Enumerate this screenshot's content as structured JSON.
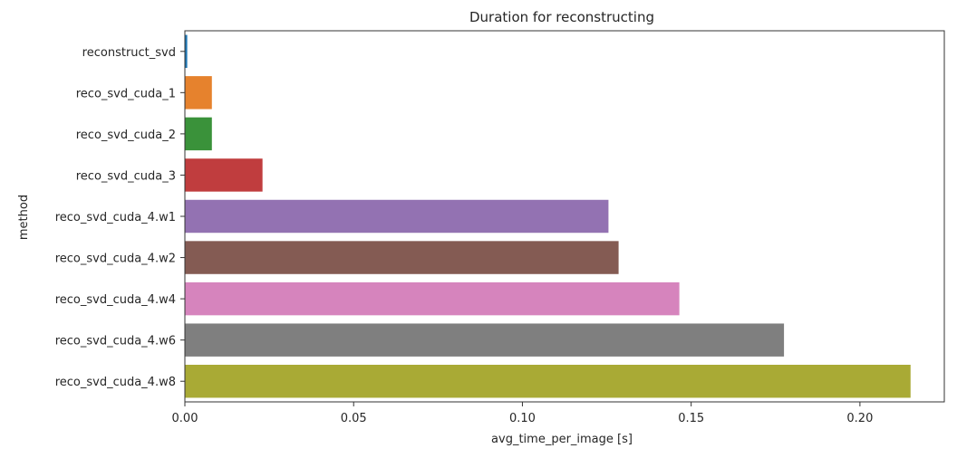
{
  "chart_data": {
    "type": "bar",
    "orientation": "horizontal",
    "title": "Duration for reconstructing",
    "xlabel": "avg_time_per_image [s]",
    "ylabel": "method",
    "xlim": [
      0,
      0.225
    ],
    "xticks": [
      "0.00",
      "0.05",
      "0.10",
      "0.15",
      "0.20"
    ],
    "xtick_values": [
      0,
      0.05,
      0.1,
      0.15,
      0.2
    ],
    "grid": false,
    "categories": [
      "reconstruct_svd",
      "reco_svd_cuda_1",
      "reco_svd_cuda_2",
      "reco_svd_cuda_3",
      "reco_svd_cuda_4.w1",
      "reco_svd_cuda_4.w2",
      "reco_svd_cuda_4.w4",
      "reco_svd_cuda_4.w6",
      "reco_svd_cuda_4.w8"
    ],
    "values": [
      0.0007,
      0.008,
      0.008,
      0.023,
      0.1255,
      0.1285,
      0.1465,
      0.1775,
      0.215
    ],
    "colors": [
      "#1f77b4",
      "#e6822d",
      "#3a923a",
      "#c03d3e",
      "#9372b2",
      "#845b53",
      "#d684bd",
      "#7f7f7f",
      "#a9aa35"
    ]
  }
}
